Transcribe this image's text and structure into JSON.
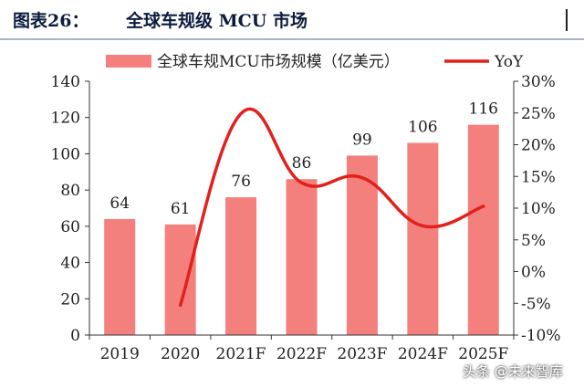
{
  "header": {
    "label": "图表26：",
    "title": "全球车规级 MCU 市场"
  },
  "chart_data": {
    "type": "bar",
    "categories": [
      "2019",
      "2020",
      "2021F",
      "2022F",
      "2023F",
      "2024F",
      "2025F"
    ],
    "series": [
      {
        "name": "全球车规MCU市场规模（亿美元）",
        "kind": "bar",
        "axis": "left",
        "color": "#f4807e",
        "values": [
          64,
          61,
          76,
          86,
          99,
          106,
          116
        ],
        "data_labels": [
          "64",
          "61",
          "76",
          "86",
          "99",
          "106",
          "116"
        ]
      },
      {
        "name": "YoY",
        "kind": "line",
        "axis": "right",
        "color": "#e3201b",
        "values": [
          null,
          -5.3,
          24.9,
          14.0,
          14.8,
          7.2,
          10.3
        ]
      }
    ],
    "y_left": {
      "min": 0,
      "max": 140,
      "ticks": [
        0,
        20,
        40,
        60,
        80,
        100,
        120,
        140
      ],
      "tick_labels": [
        "0",
        "20",
        "40",
        "60",
        "80",
        "100",
        "120",
        "140"
      ]
    },
    "y_right": {
      "min": -10,
      "max": 30,
      "ticks": [
        -10,
        -5,
        0,
        5,
        10,
        15,
        20,
        25,
        30
      ],
      "tick_labels": [
        "-10%",
        "-5%",
        "0%",
        "5%",
        "10%",
        "15%",
        "20%",
        "25%",
        "30%"
      ]
    },
    "grid": false,
    "legend_position": "top"
  },
  "watermark": {
    "text": "头条 @未来智库"
  }
}
